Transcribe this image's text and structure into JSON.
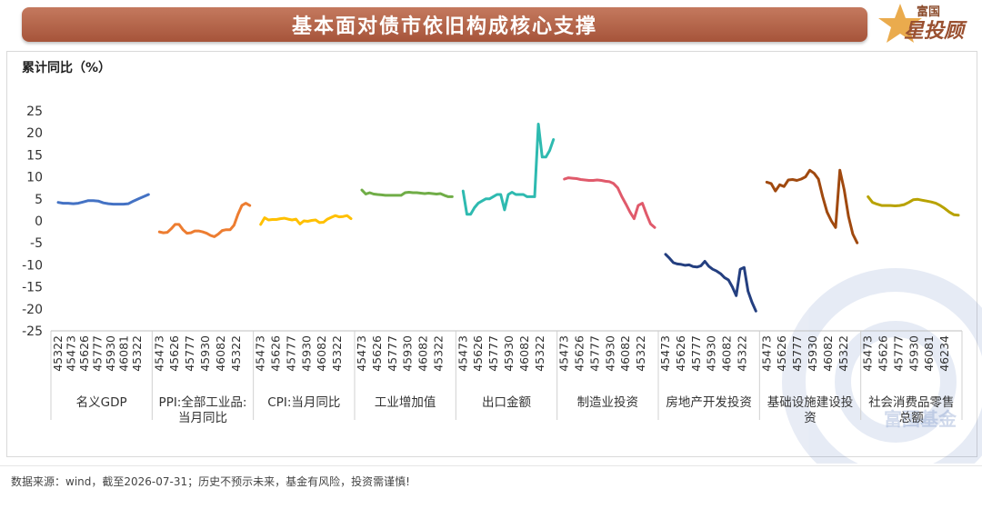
{
  "header": {
    "title": "基本面对债市依旧构成核心支撑",
    "logo_top": "富国",
    "logo_main": "星投顾"
  },
  "watermark": "富国基金",
  "footer": {
    "source": "数据来源：wind，截至2026-07-31；历史不预示未来，基金有风险，投资需谨慎!"
  },
  "chart_data": {
    "type": "line",
    "ylabel": "累计同比（%）",
    "ylim": [
      -25,
      25
    ],
    "yticks": [
      25,
      20,
      15,
      10,
      5,
      0,
      -5,
      -10,
      -15,
      -20,
      -25
    ],
    "grid": false,
    "legend": "none",
    "groups": [
      {
        "name": "名义GDP",
        "color": "#4472c4",
        "tick_labels": [
          "45322",
          "45473",
          "45626",
          "45777",
          "45930",
          "46081",
          "45322"
        ],
        "values": [
          4.2,
          4.0,
          4.0,
          3.9,
          4.0,
          4.3,
          4.6,
          4.6,
          4.5,
          4.1,
          3.9,
          3.8,
          3.8,
          3.8,
          3.9,
          4.5,
          5.0,
          5.5,
          6.0
        ]
      },
      {
        "name": "PPI:全部工业品:当月同比",
        "color": "#ed7d31",
        "tick_labels": [
          "45473",
          "45626",
          "45777",
          "45930",
          "46082",
          "45322"
        ],
        "values": [
          -2.5,
          -2.7,
          -2.6,
          -1.8,
          -0.8,
          -0.8,
          -2.0,
          -2.8,
          -2.7,
          -2.3,
          -2.3,
          -2.5,
          -2.8,
          -3.3,
          -3.6,
          -3.0,
          -2.2,
          -2.0,
          -2.0,
          -1.0,
          1.5,
          3.5,
          4.0,
          3.5
        ]
      },
      {
        "name": "CPI:当月同比",
        "color": "#ffc000",
        "tick_labels": [
          "45473",
          "45626",
          "45777",
          "45930",
          "46082",
          "45322"
        ],
        "values": [
          -0.8,
          0.7,
          0.2,
          0.3,
          0.3,
          0.5,
          0.6,
          0.4,
          0.2,
          0.4,
          -0.7,
          0.0,
          -0.1,
          0.1,
          0.2,
          -0.4,
          -0.3,
          0.4,
          0.8,
          1.2,
          0.9,
          1.0,
          1.2,
          0.5
        ]
      },
      {
        "name": "工业增加值",
        "color": "#70ad47",
        "tick_labels": [
          "45473",
          "45626",
          "45777",
          "45930",
          "46082",
          "45322"
        ],
        "values": [
          7.0,
          6.1,
          6.4,
          6.1,
          6.0,
          5.9,
          5.8,
          5.8,
          5.8,
          5.8,
          5.8,
          6.4,
          6.5,
          6.4,
          6.4,
          6.3,
          6.2,
          6.3,
          6.2,
          6.1,
          6.2,
          5.8,
          5.5,
          5.5
        ]
      },
      {
        "name": "出口金额",
        "color": "#2ebab0",
        "tick_labels": [
          "45473",
          "45626",
          "45777",
          "45930",
          "46082",
          "45322"
        ],
        "values": [
          6.8,
          1.5,
          1.5,
          3.0,
          4.0,
          4.5,
          5.0,
          5.0,
          5.5,
          6.0,
          6.0,
          2.5,
          6.0,
          6.5,
          6.0,
          6.0,
          6.0,
          5.5,
          5.5,
          5.5,
          22.0,
          14.5,
          14.5,
          16.0,
          18.5
        ]
      },
      {
        "name": "制造业投资",
        "color": "#e05a6b",
        "tick_labels": [
          "45473",
          "45626",
          "45777",
          "45930",
          "46082",
          "45322"
        ],
        "values": [
          9.5,
          9.8,
          9.7,
          9.6,
          9.4,
          9.3,
          9.2,
          9.2,
          9.3,
          9.2,
          9.0,
          8.9,
          8.5,
          7.5,
          5.5,
          3.8,
          2.0,
          0.5,
          3.5,
          4.0,
          1.5,
          -0.7,
          -1.5
        ]
      },
      {
        "name": "房地产开发投资",
        "color": "#243f80",
        "tick_labels": [
          "45473",
          "45626",
          "45777",
          "45930",
          "46082",
          "45322"
        ],
        "values": [
          -7.6,
          -8.5,
          -9.5,
          -9.8,
          -9.9,
          -10.1,
          -10.0,
          -10.4,
          -10.5,
          -10.2,
          -9.2,
          -10.3,
          -11.0,
          -11.4,
          -12.0,
          -12.9,
          -13.4,
          -15.0,
          -17.0,
          -11.0,
          -10.6,
          -16.0,
          -18.5,
          -20.5
        ]
      },
      {
        "name": "基础设施建设投资",
        "color": "#a0490f",
        "tick_labels": [
          "45473",
          "45626",
          "45777",
          "45930",
          "46082",
          "45322"
        ],
        "values": [
          8.8,
          8.5,
          6.8,
          8.2,
          7.8,
          9.3,
          9.4,
          9.2,
          9.5,
          10.0,
          11.5,
          10.8,
          9.5,
          5.5,
          2.0,
          0.0,
          -1.5,
          11.5,
          7.0,
          1.0,
          -3.0,
          -5.0
        ]
      },
      {
        "name": "社会消费品零售总额",
        "color": "#b8a200",
        "tick_labels": [
          "45473",
          "45626",
          "45777",
          "45930",
          "46081",
          "46234"
        ],
        "values": [
          5.5,
          4.2,
          3.8,
          3.5,
          3.5,
          3.5,
          3.4,
          3.5,
          3.7,
          4.2,
          4.8,
          4.9,
          4.7,
          4.5,
          4.3,
          4.0,
          3.5,
          2.8,
          2.0,
          1.4,
          1.3
        ]
      }
    ]
  }
}
